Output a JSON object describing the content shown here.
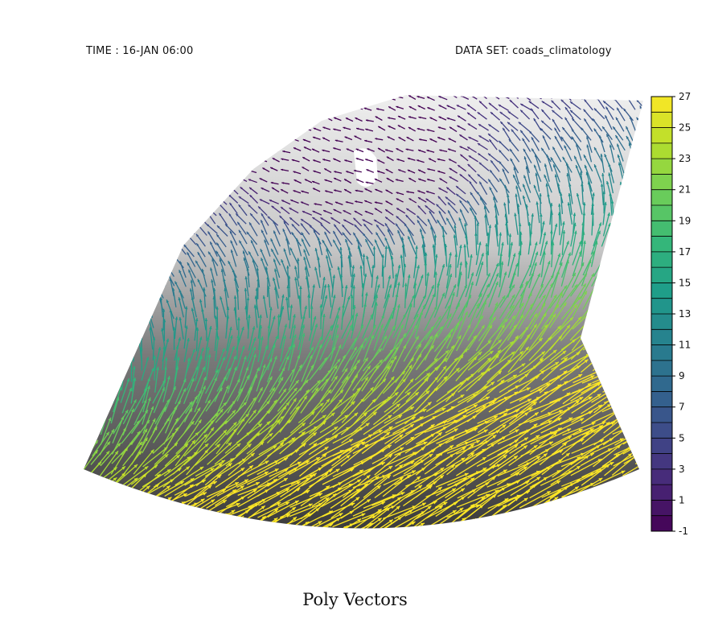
{
  "header": {
    "time_label": "TIME : 16-JAN 06:00",
    "dataset_label": "DATA SET: coads_climatology"
  },
  "title": "Poly Vectors",
  "chart_data": {
    "type": "vector-field",
    "projection": "curvilinear (polar-stereographic style sector)",
    "background_shading": "grayscale, light gray (north) to dark gray (south)",
    "colormap": "viridis",
    "colorbar": {
      "min": -1,
      "max": 27,
      "tick_labels": [
        "27",
        "25",
        "23",
        "21",
        "19",
        "17",
        "15",
        "13",
        "11",
        "9",
        "7",
        "5",
        "3",
        "1",
        "-1"
      ],
      "level_step": 1,
      "placement": "right"
    },
    "vector_speed_gradient": "low (≈1-3) in north, high (≈25-27) in south",
    "land_mask_color": "#ffffff"
  }
}
